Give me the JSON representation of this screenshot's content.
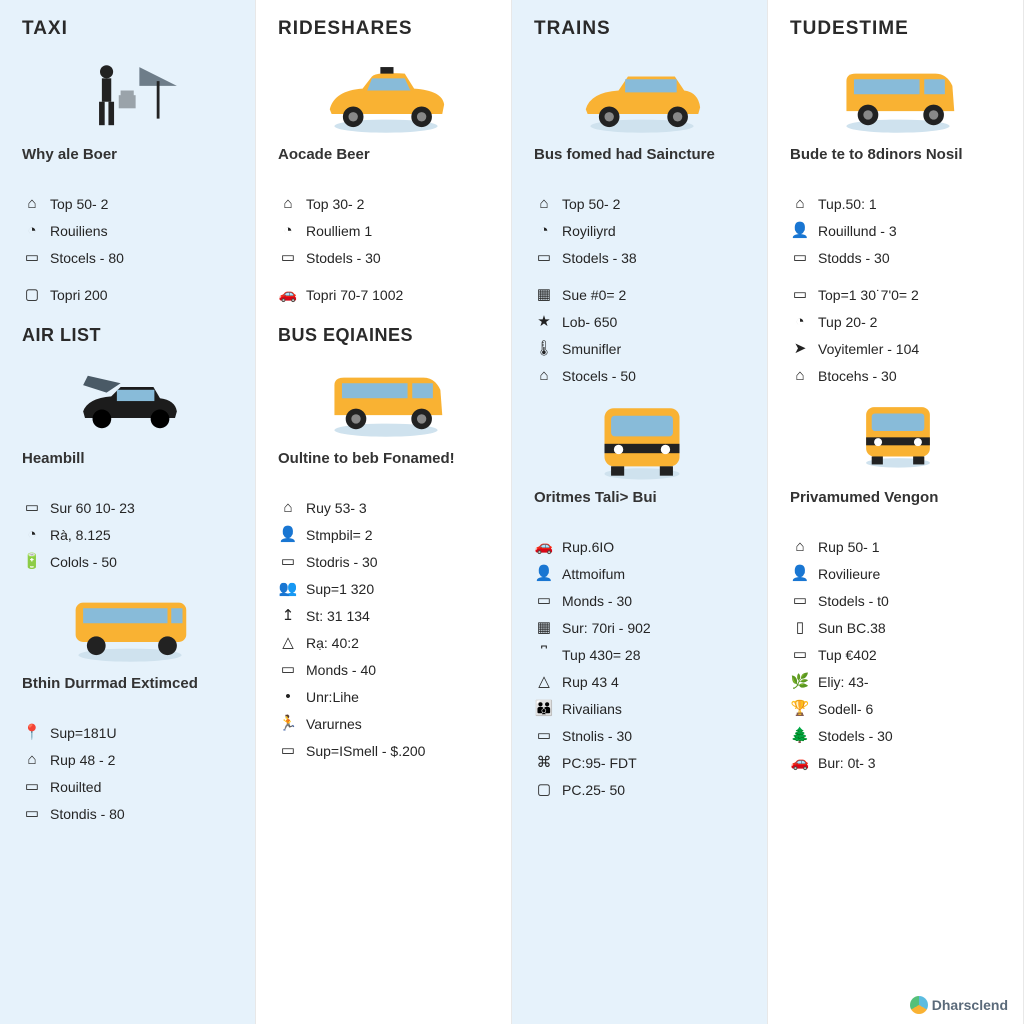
{
  "type": "infographic",
  "layout": {
    "columns": 4,
    "alt_row_bg": [
      "#e6f2fb",
      "#ffffff"
    ],
    "border_color": "#e8e8e8"
  },
  "typography": {
    "title_fontsize": 19,
    "title_weight": 700,
    "title_color": "#2a2a2a",
    "section_fontsize": 18,
    "section_weight": 700,
    "subtitle_fontsize": 15,
    "subtitle_weight": 600,
    "subtitle_color": "#333333",
    "item_fontsize": 14,
    "item_color": "#252525"
  },
  "vehicle_colors": {
    "body": "#f9b233",
    "shade": "#e09a1f",
    "dark": "#222222",
    "window": "#88bbd9",
    "shadow": "#cfe2ee"
  },
  "columns": [
    {
      "title": "TAXI",
      "top_icon": "person-umbrella",
      "subtitle": "Why ale Boer",
      "items_a": [
        {
          "icon": "house",
          "text": "Top 50- 2"
        },
        {
          "icon": "clock",
          "text": "Rouiliens"
        },
        {
          "icon": "box",
          "text": "Stocels - 80"
        }
      ],
      "items_a_extra": [
        {
          "icon": "screen",
          "text": "Topri 200"
        }
      ],
      "section_title": "AIR LIST",
      "mid_icon": "plane-car",
      "subtitle2": "Heambill",
      "items_b": [
        {
          "icon": "box",
          "text": "Sur 60 10- 23"
        },
        {
          "icon": "clock",
          "text": "Rà, 8.125"
        },
        {
          "icon": "battery",
          "text": "Colols - 50"
        }
      ],
      "low_icon": "bus-side",
      "subtitle3": "Bthin Durrmad Extimced",
      "items_c": [
        {
          "icon": "pin",
          "text": "Sup=181U"
        },
        {
          "icon": "house",
          "text": "Rup 48 - 2"
        },
        {
          "icon": "box",
          "text": "Rouilted"
        },
        {
          "icon": "box",
          "text": "Stondis - 80"
        }
      ]
    },
    {
      "title": "RIDESHARES",
      "top_icon": "taxi-sedan",
      "subtitle": "Aocade Beer",
      "items_a": [
        {
          "icon": "house",
          "text": "Top 30- 2"
        },
        {
          "icon": "clock",
          "text": "Roulliem 1"
        },
        {
          "icon": "box",
          "text": "Stodels - 30"
        }
      ],
      "items_a_extra": [
        {
          "icon": "car",
          "text": "Topri 70-7 1002"
        }
      ],
      "section_title": "BUS EQIAINES",
      "mid_icon": "van",
      "subtitle2": "Oultine to beb Fonamed!",
      "items_b": [
        {
          "icon": "house",
          "text": "Ruy 53- 3"
        },
        {
          "icon": "person",
          "text": "Stmpbil= 2"
        },
        {
          "icon": "box",
          "text": "Stodris - 30"
        }
      ],
      "items_b2": [
        {
          "icon": "group",
          "text": "Sup=1 320"
        },
        {
          "icon": "up",
          "text": "St: 31 134"
        },
        {
          "icon": "tri",
          "text": "Rạ: 40:2"
        },
        {
          "icon": "box",
          "text": "Monds - 40"
        }
      ],
      "items_b3": [
        {
          "icon": "dot",
          "text": "Unr:Lihe"
        },
        {
          "icon": "run",
          "text": "Varurnes"
        },
        {
          "icon": "box",
          "text": "Sup=ISmell - $.200"
        }
      ]
    },
    {
      "title": "TRAINS",
      "top_icon": "wagon",
      "subtitle": "Bus fomed had Saincture",
      "items_a": [
        {
          "icon": "house",
          "text": "Top 50- 2"
        },
        {
          "icon": "clock",
          "text": "Royiliyrd"
        },
        {
          "icon": "box",
          "text": "Stodels - 38"
        }
      ],
      "items_a_extra": [
        {
          "icon": "grid",
          "text": "Sue #0= 2"
        },
        {
          "icon": "star",
          "text": "Lob- 650"
        },
        {
          "icon": "temp",
          "text": "Smunifler"
        },
        {
          "icon": "home",
          "text": "Stocels - 50"
        }
      ],
      "section_title": "",
      "mid_icon": "bus-front",
      "subtitle2": "Oritmes Tali> Bui",
      "items_b": [
        {
          "icon": "car",
          "text": "Rup.6IO"
        },
        {
          "icon": "person",
          "text": "Attmoifum"
        },
        {
          "icon": "box",
          "text": "Monds - 30"
        }
      ],
      "items_b2": [
        {
          "icon": "grid",
          "text": "Sur: 70ri - 902"
        },
        {
          "icon": "bar",
          "text": "Tup 430= 28"
        },
        {
          "icon": "tri",
          "text": "Rup 43 4"
        },
        {
          "icon": "people",
          "text": "Rivailians"
        },
        {
          "icon": "box",
          "text": "Stnolis - 30"
        }
      ],
      "items_b3": [
        {
          "icon": "chip",
          "text": "PC:95- FDT"
        },
        {
          "icon": "screen",
          "text": "PC.25- 50"
        }
      ]
    },
    {
      "title": "TUDESTIME",
      "top_icon": "van",
      "subtitle": "Bude te to 8dinors Nosil",
      "items_a": [
        {
          "icon": "house",
          "text": "Tup.50: 1"
        },
        {
          "icon": "person",
          "text": "Rouillund - 3"
        },
        {
          "icon": "box",
          "text": "Stodds - 30"
        }
      ],
      "items_a_extra": [
        {
          "icon": "box",
          "text": "Top=1 30˙7'0= 2"
        },
        {
          "icon": "clock",
          "text": "Tup 20- 2"
        },
        {
          "icon": "arrow",
          "text": "Voyitemler - 104"
        },
        {
          "icon": "home",
          "text": "Btocehs - 30"
        }
      ],
      "section_title": "",
      "mid_icon": "bus-front-small",
      "subtitle2": "Privamumed Vengon",
      "items_b": [
        {
          "icon": "house",
          "text": "Rup 50- 1"
        },
        {
          "icon": "person",
          "text": "Rovilieure"
        },
        {
          "icon": "box",
          "text": "Stodels - t0"
        }
      ],
      "items_b2": [
        {
          "icon": "remote",
          "text": "Sun BC.38"
        },
        {
          "icon": "box",
          "text": "Tup €402"
        },
        {
          "icon": "plant",
          "text": "Eliy: 43-"
        },
        {
          "icon": "cup",
          "text": "Sodell- 6"
        },
        {
          "icon": "tree",
          "text": "Stodels - 30"
        }
      ],
      "items_b3": [
        {
          "icon": "car",
          "text": "Bur: 0t- 3"
        }
      ]
    }
  ],
  "footer": "Dharsclend"
}
